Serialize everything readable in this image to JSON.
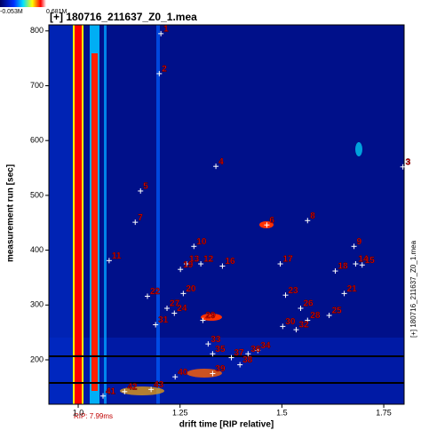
{
  "chart_data": {
    "type": "scatter",
    "title": "[+] 180716_211637_Z0_1.mea",
    "x_label": "drift time [RIP relative]",
    "y_label": "measurement run [sec]",
    "colorbar_min_label": "-0.053M",
    "colorbar_max_label": "0.681M",
    "rip_label": "RIP: 7.99ms",
    "side_label": "[+] 180716_211637_Z0_1.mea",
    "xlim": [
      0.928,
      1.8
    ],
    "ylim": [
      119,
      811
    ],
    "xticks": [
      {
        "value": 1,
        "label": "1.0"
      },
      1.25,
      1.5,
      1.75
    ],
    "yticks": [
      200,
      300,
      400,
      500,
      600,
      700,
      800
    ],
    "marker_color": "#ffffff",
    "label_color": "#e00000",
    "x": [
      1.203,
      1.199,
      1.797,
      1.338,
      1.153,
      1.463,
      1.14,
      1.563,
      1.677,
      1.284,
      1.076,
      1.301,
      1.266,
      1.681,
      1.697,
      1.354,
      1.496,
      1.631,
      1.251,
      1.258,
      1.653,
      1.17,
      1.509,
      1.236,
      1.616,
      1.546,
      1.218,
      1.563,
      1.306,
      1.502,
      1.19,
      1.535,
      1.319,
      1.441,
      1.33,
      1.417,
      1.376,
      1.397,
      1.33,
      1.238,
      1.061,
      1.114,
      1.179
    ],
    "values": [
      795,
      722,
      552,
      553,
      508,
      446,
      451,
      454,
      407,
      407,
      381,
      375,
      375,
      375,
      373,
      371,
      375,
      362,
      365,
      321,
      321,
      316,
      318,
      285,
      281,
      294,
      294,
      272,
      272,
      261,
      264,
      255,
      229,
      217,
      211,
      211,
      204,
      191,
      175,
      169,
      134,
      142,
      146
    ],
    "point_labels": [
      "1",
      "2",
      "3",
      "4",
      "5",
      "6",
      "7",
      "8",
      "9",
      "10",
      "11",
      "12",
      "13",
      "14",
      "15",
      "16",
      "17",
      "18",
      "19",
      "20",
      "21",
      "22",
      "23",
      "24",
      "25",
      "26",
      "27",
      "28",
      "29",
      "30",
      "31",
      "32",
      "33",
      "34",
      "35",
      "36",
      "37",
      "38",
      "39",
      "40",
      "41",
      "42",
      "43"
    ]
  }
}
